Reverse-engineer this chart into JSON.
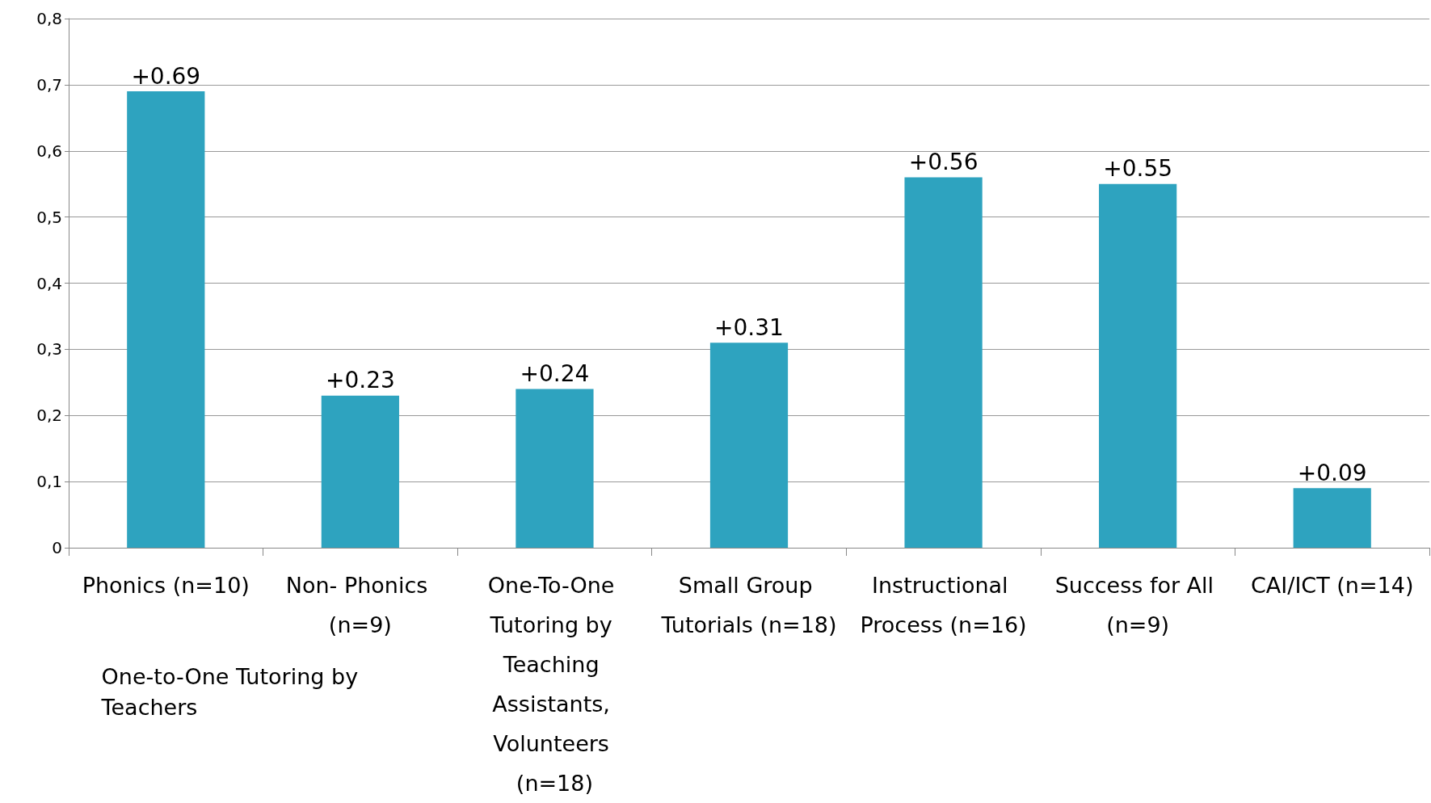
{
  "chart_data": {
    "type": "bar",
    "categories": [
      "Phonics (n=10)",
      "Non- Phonics (n=9)",
      "One-To-One Tutoring by Teaching Assistants, Volunteers (n=18)",
      "Small Group Tutorials (n=18)",
      "Instructional Process (n=16)",
      "Success for All (n=9)",
      "CAI/ICT (n=14)"
    ],
    "values": [
      0.69,
      0.23,
      0.24,
      0.31,
      0.56,
      0.55,
      0.09
    ],
    "value_labels": [
      "+0.69",
      "+0.23",
      "+0.24",
      "+0.31",
      "+0.56",
      "+0.55",
      "+0.09"
    ],
    "color": "#2ea3bf",
    "ylim": [
      0,
      0.8
    ],
    "yticks": [
      {
        "value": 0,
        "label": "0"
      },
      {
        "value": 0.1,
        "label": "0,1"
      },
      {
        "value": 0.2,
        "label": "0,2"
      },
      {
        "value": 0.3,
        "label": "0,3"
      },
      {
        "value": 0.4,
        "label": "0,4"
      },
      {
        "value": 0.5,
        "label": "0,5"
      },
      {
        "value": 0.6,
        "label": "0,6"
      },
      {
        "value": 0.7,
        "label": "0,7"
      },
      {
        "value": 0.8,
        "label": "0,8"
      }
    ],
    "grid": true,
    "annotations": [
      "One-to-One Tutoring by Teachers"
    ]
  }
}
